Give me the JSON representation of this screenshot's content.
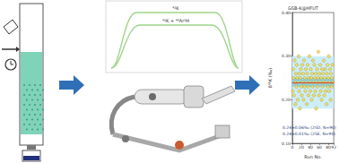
{
  "diagram": {
    "peak_labels": [
      "⁴¹K",
      "⁴¹K + ⁴⁰Ar¹H"
    ]
  },
  "chart_data": {
    "type": "scatter",
    "title": "GSB-K@HFUT",
    "x_label": "Run No.",
    "y_label": "δ⁴¹K (‰)",
    "x": [
      1,
      2,
      3,
      4,
      5,
      6,
      7,
      8,
      9,
      10,
      11,
      12,
      13,
      14,
      15,
      16,
      17,
      18,
      19,
      20,
      21,
      22,
      23,
      24,
      25,
      26,
      27,
      28,
      29,
      30,
      31,
      32,
      33,
      34,
      35,
      36,
      37,
      38,
      39,
      40,
      41,
      42,
      43,
      44,
      45,
      46,
      47,
      48,
      49,
      50,
      51,
      52,
      53,
      54,
      55,
      56,
      57,
      58,
      59,
      60,
      61,
      62,
      63,
      64,
      65,
      66,
      67,
      68,
      69,
      70,
      71,
      72,
      73,
      74,
      75,
      76,
      77,
      78,
      79,
      80,
      81,
      82,
      83,
      84,
      85,
      86,
      87,
      88,
      89,
      90
    ],
    "values": [
      0.22,
      0.27,
      0.25,
      0.21,
      0.29,
      0.24,
      0.19,
      0.26,
      0.23,
      0.28,
      0.25,
      0.2,
      0.24,
      0.3,
      0.22,
      0.26,
      0.18,
      0.25,
      0.27,
      0.23,
      0.21,
      0.28,
      0.24,
      0.26,
      0.2,
      0.29,
      0.23,
      0.25,
      0.22,
      0.27,
      0.24,
      0.19,
      0.26,
      0.28,
      0.23,
      0.21,
      0.25,
      0.3,
      0.24,
      0.22,
      0.27,
      0.25,
      0.2,
      0.26,
      0.23,
      0.29,
      0.24,
      0.21,
      0.28,
      0.25,
      0.22,
      0.26,
      0.18,
      0.24,
      0.27,
      0.23,
      0.25,
      0.31,
      0.21,
      0.26,
      0.24,
      0.28,
      0.22,
      0.25,
      0.2,
      0.27,
      0.23,
      0.26,
      0.24,
      0.29,
      0.21,
      0.25,
      0.27,
      0.22,
      0.24,
      0.19,
      0.26,
      0.28,
      0.23,
      0.25,
      0.3,
      0.22,
      0.24,
      0.27,
      0.2,
      0.26,
      0.23,
      0.25,
      0.28,
      0.24
    ],
    "color": "#f5dc4a",
    "marker": "circle",
    "xlim": [
      0,
      92
    ],
    "xticks": [
      0,
      20,
      40,
      60,
      80
    ],
    "ylim": [
      0.1,
      0.4
    ],
    "yticks": [
      {
        "value": 0.1,
        "label": "0.10"
      },
      {
        "value": 0.2,
        "label": "0.20"
      },
      {
        "value": 0.3,
        "label": "0.30"
      },
      {
        "value": 0.4,
        "label": "0.40"
      }
    ],
    "mean": 0.24,
    "mean_color": "#d62728",
    "bands": [
      {
        "center": 0.24,
        "half_width": 0.06,
        "color": "#cdeef8",
        "label": "0.24±0.06‰ (2SD, N=90)"
      },
      {
        "center": 0.24,
        "half_width": 0.01,
        "color": "#8fd3ea",
        "label": "0.24±0.01‰ (2SE, N=90)"
      }
    ],
    "grid": false
  }
}
